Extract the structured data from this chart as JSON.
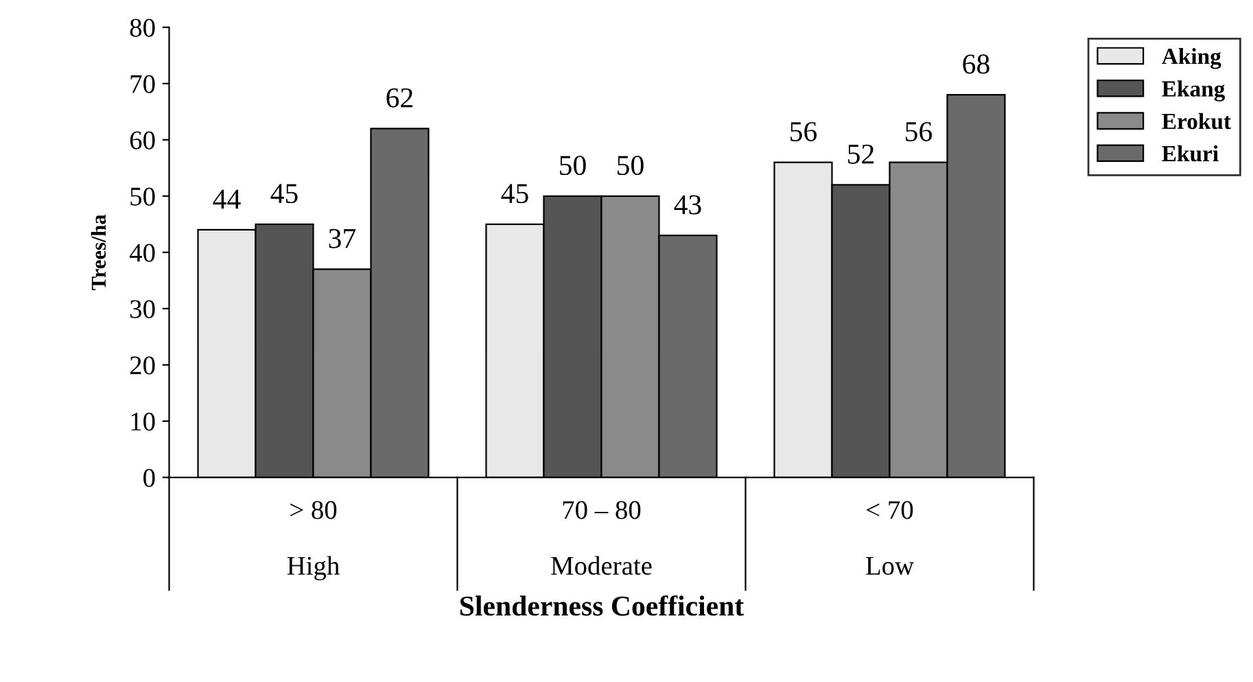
{
  "chart_data": {
    "type": "bar",
    "xlabel": "Slenderness Coefficient",
    "ylabel": "Trees/ha",
    "categories": [
      "> 80\n\nHigh",
      "70 – 80\n\nModerate",
      "< 70\n\nLow"
    ],
    "series": [
      {
        "name": "Aking",
        "color": "#e8e8e8",
        "values": [
          44,
          45,
          56
        ]
      },
      {
        "name": "Ekang",
        "color": "#555555",
        "values": [
          45,
          50,
          52
        ]
      },
      {
        "name": "Erokut",
        "color": "#8a8a8a",
        "values": [
          37,
          50,
          56
        ]
      },
      {
        "name": "Ekuri",
        "color": "#6a6a6a",
        "values": [
          62,
          43,
          68
        ]
      }
    ],
    "ylim": [
      0,
      80
    ],
    "yticks": [
      0,
      10,
      20,
      30,
      40,
      50,
      60,
      70,
      80
    ],
    "data_labels": true,
    "legend": "top right",
    "grid": false
  }
}
